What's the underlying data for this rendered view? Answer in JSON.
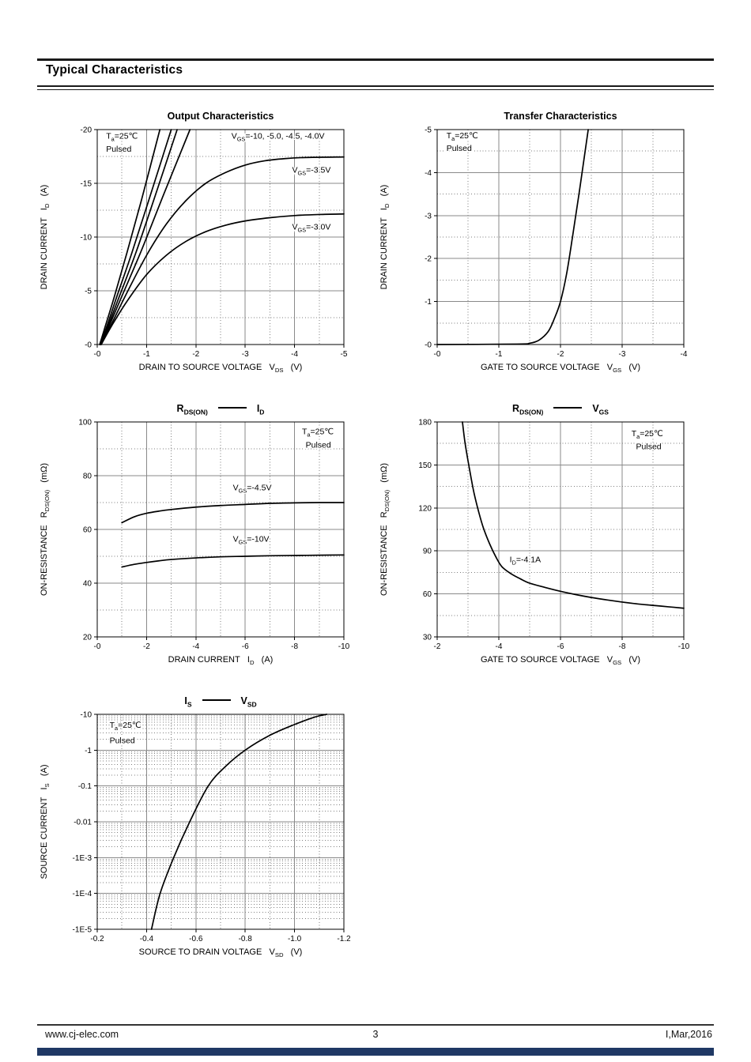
{
  "page": {
    "header": {
      "title": "Typical Characteristics"
    },
    "footer": {
      "website": "www.cj-elec.com",
      "page_number": "3",
      "revision": "I,Mar,2016",
      "bar_color": "#1f3864"
    }
  },
  "colors": {
    "curve": "#000000",
    "grid_major": "#8a8a8a",
    "grid_minor": "#7d7d7d",
    "plot_border": "#000000"
  },
  "chart_data": [
    {
      "id": "output-characteristics",
      "type": "line",
      "name": "Output Characteristics",
      "title_segments": [
        {
          "text": "Output Characteristics"
        }
      ],
      "x_axis": {
        "label": "DRAIN TO SOURCE VOLTAGE   V~DS~   (V)",
        "min": 0,
        "max": 5,
        "scale": "linear",
        "ticks": [
          {
            "v": 0,
            "label": "-0"
          },
          {
            "v": 1,
            "label": "-1"
          },
          {
            "v": 2,
            "label": "-2"
          },
          {
            "v": 3,
            "label": "-3"
          },
          {
            "v": 4,
            "label": "-4"
          },
          {
            "v": 5,
            "label": "-5"
          }
        ],
        "majors": [
          1,
          2,
          3,
          4
        ],
        "minors": [
          0.5,
          1.5,
          2.5,
          3.5,
          4.5
        ]
      },
      "y_axis": {
        "label": "DRAIN CURRENT   I~D~   (A)",
        "min": 0,
        "max": 20,
        "scale": "linear",
        "ticks": [
          {
            "v": 0,
            "label": "-0"
          },
          {
            "v": 5,
            "label": "-5"
          },
          {
            "v": 10,
            "label": "-10"
          },
          {
            "v": 15,
            "label": "-15"
          },
          {
            "v": 20,
            "label": "-20"
          }
        ],
        "majors": [
          5,
          10,
          15
        ],
        "minors": [
          2.5,
          7.5,
          12.5,
          17.5
        ]
      },
      "series": [
        {
          "name": "VGS=-10V",
          "points": [
            [
              0.05,
              0
            ],
            [
              0.15,
              1.5
            ],
            [
              0.35,
              4.5
            ],
            [
              0.6,
              8.5
            ],
            [
              0.9,
              13.5
            ],
            [
              1.27,
              20
            ]
          ]
        },
        {
          "name": "VGS=-5.0V",
          "points": [
            [
              0.05,
              0
            ],
            [
              0.18,
              1.5
            ],
            [
              0.4,
              4.5
            ],
            [
              0.7,
              8.5
            ],
            [
              1.05,
              13.5
            ],
            [
              1.5,
              20
            ]
          ]
        },
        {
          "name": "VGS=-4.5V",
          "points": [
            [
              0.06,
              0
            ],
            [
              0.2,
              1.5
            ],
            [
              0.45,
              4.5
            ],
            [
              0.78,
              8.5
            ],
            [
              1.15,
              13.5
            ],
            [
              1.62,
              20
            ]
          ]
        },
        {
          "name": "VGS=-4.0V",
          "points": [
            [
              0.07,
              0
            ],
            [
              0.22,
              1.5
            ],
            [
              0.5,
              4.5
            ],
            [
              0.9,
              8.8
            ],
            [
              1.35,
              14
            ],
            [
              1.88,
              20
            ]
          ]
        },
        {
          "name": "VGS=-3.5V",
          "points": [
            [
              0.08,
              0
            ],
            [
              0.3,
              2
            ],
            [
              0.6,
              4.8
            ],
            [
              1.0,
              8.3
            ],
            [
              1.4,
              11.2
            ],
            [
              1.8,
              13.4
            ],
            [
              2.2,
              15
            ],
            [
              2.6,
              16
            ],
            [
              3.0,
              16.7
            ],
            [
              3.4,
              17.1
            ],
            [
              3.8,
              17.3
            ],
            [
              4.2,
              17.4
            ],
            [
              5.0,
              17.45
            ]
          ]
        },
        {
          "name": "VGS=-3.0V",
          "points": [
            [
              0.08,
              0
            ],
            [
              0.3,
              1.8
            ],
            [
              0.6,
              4
            ],
            [
              1.0,
              6.5
            ],
            [
              1.4,
              8.3
            ],
            [
              1.8,
              9.6
            ],
            [
              2.2,
              10.5
            ],
            [
              2.6,
              11.1
            ],
            [
              3.0,
              11.5
            ],
            [
              3.5,
              11.8
            ],
            [
              4.0,
              12
            ],
            [
              4.5,
              12.1
            ],
            [
              5.0,
              12.15
            ]
          ]
        }
      ],
      "annotations": [
        {
          "text": "T~a~=25℃",
          "x": 0.18,
          "y": 19.15
        },
        {
          "text": "Pulsed",
          "x": 0.18,
          "y": 17.95
        },
        {
          "text": "V~GS~=-10, -5.0, -4.5, -4.0V",
          "x": 2.72,
          "y": 19.15
        },
        {
          "text": "V~GS~=-3.5V",
          "x": 3.95,
          "y": 16.0
        },
        {
          "text": "V~GS~=-3.0V",
          "x": 3.95,
          "y": 10.7
        }
      ]
    },
    {
      "id": "transfer-characteristics",
      "type": "line",
      "name": "Transfer Characteristics",
      "title_segments": [
        {
          "text": "Transfer Characteristics"
        }
      ],
      "x_axis": {
        "label": "GATE TO SOURCE VOLTAGE   V~GS~   (V)",
        "min": 0,
        "max": 4,
        "scale": "linear",
        "ticks": [
          {
            "v": 0,
            "label": "-0"
          },
          {
            "v": 1,
            "label": "-1"
          },
          {
            "v": 2,
            "label": "-2"
          },
          {
            "v": 3,
            "label": "-3"
          },
          {
            "v": 4,
            "label": "-4"
          }
        ],
        "majors": [
          1,
          2,
          3
        ],
        "minors": [
          0.5,
          1.5,
          2.5,
          3.5
        ]
      },
      "y_axis": {
        "label": "DRAIN CURRENT   I~D~   (A)",
        "min": 0,
        "max": 5,
        "scale": "linear",
        "ticks": [
          {
            "v": 0,
            "label": "-0"
          },
          {
            "v": 1,
            "label": "-1"
          },
          {
            "v": 2,
            "label": "-2"
          },
          {
            "v": 3,
            "label": "-3"
          },
          {
            "v": 4,
            "label": "-4"
          },
          {
            "v": 5,
            "label": "-5"
          }
        ],
        "majors": [
          1,
          2,
          3,
          4
        ],
        "minors": [
          0.5,
          1.5,
          2.5,
          3.5,
          4.5
        ]
      },
      "series": [
        {
          "name": "ID vs VGS",
          "points": [
            [
              0,
              0
            ],
            [
              1.3,
              0.01
            ],
            [
              1.5,
              0.03
            ],
            [
              1.65,
              0.1
            ],
            [
              1.8,
              0.3
            ],
            [
              1.9,
              0.6
            ],
            [
              2.0,
              1.0
            ],
            [
              2.1,
              1.65
            ],
            [
              2.2,
              2.55
            ],
            [
              2.3,
              3.5
            ],
            [
              2.4,
              4.5
            ],
            [
              2.45,
              5.0
            ]
          ]
        }
      ],
      "annotations": [
        {
          "text": "T~a~=25℃",
          "x": 0.15,
          "y": 4.8
        },
        {
          "text": "Pulsed",
          "x": 0.15,
          "y": 4.5
        }
      ]
    },
    {
      "id": "rdson-vs-id",
      "type": "line",
      "name": "RDS(ON) - ID",
      "title_segments": [
        {
          "text": "R~DS(ON)~"
        },
        {
          "dash": true
        },
        {
          "text": "I~D~"
        }
      ],
      "x_axis": {
        "label": "DRAIN CURRENT   I~D~   (A)",
        "min": 0,
        "max": 10,
        "scale": "linear",
        "ticks": [
          {
            "v": 0,
            "label": "-0"
          },
          {
            "v": 2,
            "label": "-2"
          },
          {
            "v": 4,
            "label": "-4"
          },
          {
            "v": 6,
            "label": "-6"
          },
          {
            "v": 8,
            "label": "-8"
          },
          {
            "v": 10,
            "label": "-10"
          }
        ],
        "majors": [
          2,
          4,
          6,
          8
        ],
        "minors": [
          1,
          3,
          5,
          7,
          9
        ]
      },
      "y_axis": {
        "label": "ON-RESISTANCE   R~DS(ON)~   (mΩ)",
        "min": 20,
        "max": 100,
        "scale": "linear",
        "ticks": [
          {
            "v": 20,
            "label": "20"
          },
          {
            "v": 40,
            "label": "40"
          },
          {
            "v": 60,
            "label": "60"
          },
          {
            "v": 80,
            "label": "80"
          },
          {
            "v": 100,
            "label": "100"
          }
        ],
        "majors": [
          40,
          60,
          80
        ],
        "minors": [
          30,
          50,
          70,
          90
        ]
      },
      "series": [
        {
          "name": "VGS=-4.5V",
          "points": [
            [
              1,
              62.5
            ],
            [
              1.5,
              64.7
            ],
            [
              2,
              66
            ],
            [
              2.5,
              66.8
            ],
            [
              3,
              67.4
            ],
            [
              4,
              68.3
            ],
            [
              5,
              68.9
            ],
            [
              6,
              69.3
            ],
            [
              7,
              69.7
            ],
            [
              8,
              69.9
            ],
            [
              9,
              70
            ],
            [
              10,
              70
            ]
          ]
        },
        {
          "name": "VGS=-10V",
          "points": [
            [
              1,
              46
            ],
            [
              1.5,
              47
            ],
            [
              2,
              47.7
            ],
            [
              2.5,
              48.3
            ],
            [
              3,
              48.8
            ],
            [
              4,
              49.4
            ],
            [
              5,
              49.8
            ],
            [
              6,
              50
            ],
            [
              7,
              50.2
            ],
            [
              8,
              50.3
            ],
            [
              9,
              50.4
            ],
            [
              10,
              50.5
            ]
          ]
        }
      ],
      "annotations": [
        {
          "text": "T~a~=25℃",
          "x": 8.3,
          "y": 95.5
        },
        {
          "text": "Pulsed",
          "x": 8.45,
          "y": 90.5
        },
        {
          "text": "V~GS~=-4.5V",
          "x": 5.5,
          "y": 74.5
        },
        {
          "text": "V~GS~=-10V",
          "x": 5.5,
          "y": 55.5
        }
      ]
    },
    {
      "id": "rdson-vs-vgs",
      "type": "line",
      "name": "RDS(ON) - VGS",
      "title_segments": [
        {
          "text": "R~DS(ON)~"
        },
        {
          "dash": true
        },
        {
          "text": "V~GS~"
        }
      ],
      "x_axis": {
        "label": "GATE TO SOURCE VOLTAGE   V~GS~   (V)",
        "min": 2,
        "max": 10,
        "scale": "linear",
        "ticks": [
          {
            "v": 2,
            "label": "-2"
          },
          {
            "v": 4,
            "label": "-4"
          },
          {
            "v": 6,
            "label": "-6"
          },
          {
            "v": 8,
            "label": "-8"
          },
          {
            "v": 10,
            "label": "-10"
          }
        ],
        "majors": [
          4,
          6,
          8
        ],
        "minors": [
          3,
          5,
          7,
          9
        ]
      },
      "y_axis": {
        "label": "ON-RESISTANCE   R~DS(ON)~   (mΩ)",
        "min": 30,
        "max": 180,
        "scale": "linear",
        "ticks": [
          {
            "v": 30,
            "label": "30"
          },
          {
            "v": 60,
            "label": "60"
          },
          {
            "v": 90,
            "label": "90"
          },
          {
            "v": 120,
            "label": "120"
          },
          {
            "v": 150,
            "label": "150"
          },
          {
            "v": 180,
            "label": "180"
          }
        ],
        "majors": [
          60,
          90,
          120,
          150
        ],
        "minors": [
          45,
          75,
          105,
          135,
          165
        ]
      },
      "series": [
        {
          "name": "ID=-4.1A",
          "points": [
            [
              2.82,
              180
            ],
            [
              2.9,
              166
            ],
            [
              3.0,
              153
            ],
            [
              3.1,
              141
            ],
            [
              3.2,
              130
            ],
            [
              3.35,
              117
            ],
            [
              3.5,
              106
            ],
            [
              3.7,
              95
            ],
            [
              3.9,
              86
            ],
            [
              4.1,
              79
            ],
            [
              4.4,
              74
            ],
            [
              4.7,
              70.5
            ],
            [
              5.0,
              67.5
            ],
            [
              5.5,
              64.5
            ],
            [
              6.0,
              61.8
            ],
            [
              6.5,
              59.5
            ],
            [
              7.0,
              57.5
            ],
            [
              7.5,
              55.8
            ],
            [
              8.0,
              54.3
            ],
            [
              8.5,
              53
            ],
            [
              9.0,
              52
            ],
            [
              9.5,
              51
            ],
            [
              10,
              50
            ]
          ]
        }
      ],
      "annotations": [
        {
          "text": "T~a~=25℃",
          "x": 8.3,
          "y": 170
        },
        {
          "text": "Pulsed",
          "x": 8.45,
          "y": 161
        },
        {
          "text": "I~D~=-4.1A",
          "x": 4.35,
          "y": 82
        }
      ]
    },
    {
      "id": "is-vs-vsd",
      "type": "line",
      "name": "IS - VSD",
      "title_segments": [
        {
          "text": "I~S~"
        },
        {
          "dash": true
        },
        {
          "text": "V~SD~"
        }
      ],
      "x_axis": {
        "label": "SOURCE TO DRAIN VOLTAGE   V~SD~   (V)",
        "min": 0.2,
        "max": 1.2,
        "scale": "linear",
        "ticks": [
          {
            "v": 0.2,
            "label": "-0.2"
          },
          {
            "v": 0.4,
            "label": "-0.4"
          },
          {
            "v": 0.6,
            "label": "-0.6"
          },
          {
            "v": 0.8,
            "label": "-0.8"
          },
          {
            "v": 1.0,
            "label": "-1.0"
          },
          {
            "v": 1.2,
            "label": "-1.2"
          }
        ],
        "majors": [
          0.4,
          0.6,
          0.8,
          1.0
        ],
        "minors": [
          0.3,
          0.5,
          0.7,
          0.9,
          1.1
        ]
      },
      "y_axis": {
        "label": "SOURCE CURRENT   I~S~   (A)",
        "min": 1e-05,
        "max": 10,
        "scale": "log",
        "ticks": [
          {
            "v": 1e-05,
            "label": "-1E-5"
          },
          {
            "v": 0.0001,
            "label": "-1E-4"
          },
          {
            "v": 0.001,
            "label": "-1E-3"
          },
          {
            "v": 0.01,
            "label": "-0.01"
          },
          {
            "v": 0.1,
            "label": "-0.1"
          },
          {
            "v": 1,
            "label": "-1"
          },
          {
            "v": 10,
            "label": "-10"
          }
        ],
        "majors": [
          0.0001,
          0.001,
          0.01,
          0.1,
          1
        ]
      },
      "series": [
        {
          "name": "IS vs VSD",
          "points": [
            [
              0.42,
              1e-05
            ],
            [
              0.455,
              0.0001
            ],
            [
              0.51,
              0.001
            ],
            [
              0.575,
              0.01
            ],
            [
              0.65,
              0.1
            ],
            [
              0.72,
              0.35
            ],
            [
              0.8,
              1.0
            ],
            [
              0.9,
              2.6
            ],
            [
              1.0,
              5.2
            ],
            [
              1.08,
              8.3
            ],
            [
              1.13,
              10
            ]
          ]
        }
      ],
      "annotations": [
        {
          "text": "T~a~=25℃",
          "x": 0.25,
          "y": 4.2
        },
        {
          "text": "Pulsed",
          "x": 0.25,
          "y": 1.55
        }
      ]
    }
  ]
}
